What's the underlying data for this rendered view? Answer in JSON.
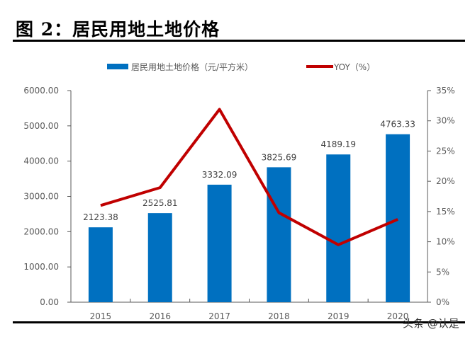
{
  "title": "图 2：居民用地土地价格",
  "watermark": "头条 @认是",
  "colors": {
    "bar": "#0070C0",
    "line": "#C00000",
    "axis": "#595959"
  },
  "chart_data": {
    "type": "bar+line",
    "categories": [
      "2015",
      "2016",
      "2017",
      "2018",
      "2019",
      "2020"
    ],
    "series": [
      {
        "name": "居民用地土地价格（元/平方米）",
        "type": "bar",
        "axis": "left",
        "values": [
          2123.38,
          2525.81,
          3332.09,
          3825.69,
          4189.19,
          4763.33
        ],
        "labels": [
          "2123.38",
          "2525.81",
          "3332.09",
          "3825.69",
          "4189.19",
          "4763.33"
        ]
      },
      {
        "name": "YOY（%）",
        "type": "line",
        "axis": "right",
        "values": [
          16.0,
          18.95,
          31.9,
          14.8,
          9.5,
          13.7
        ]
      }
    ],
    "left_axis": {
      "ylim": [
        0,
        6000
      ],
      "ticks": [
        "0.00",
        "1000.00",
        "2000.00",
        "3000.00",
        "4000.00",
        "5000.00",
        "6000.00"
      ]
    },
    "right_axis": {
      "ylim": [
        0,
        35
      ],
      "ticks": [
        "0%",
        "5%",
        "10%",
        "15%",
        "20%",
        "25%",
        "30%",
        "35%"
      ]
    },
    "legend": "top",
    "grid": false
  }
}
